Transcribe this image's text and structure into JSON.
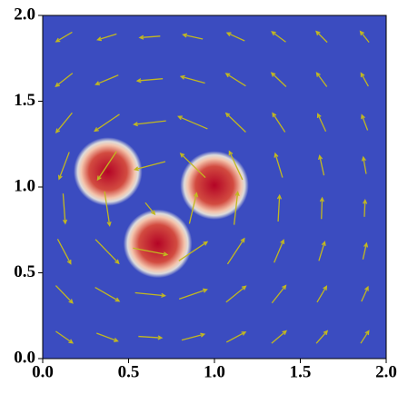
{
  "chart_data": {
    "type": "quiver",
    "xlim": [
      0,
      2
    ],
    "ylim": [
      0,
      2
    ],
    "xticks": [
      {
        "value": 0,
        "label": "0.0"
      },
      {
        "value": 0.5,
        "label": "0.5"
      },
      {
        "value": 1,
        "label": "1.0"
      },
      {
        "value": 1.5,
        "label": "1.5"
      },
      {
        "value": 2,
        "label": "2.0"
      }
    ],
    "yticks": [
      {
        "value": 0,
        "label": "0.0"
      },
      {
        "value": 0.5,
        "label": "0.5"
      },
      {
        "value": 1,
        "label": "1.0"
      },
      {
        "value": 1.5,
        "label": "1.5"
      },
      {
        "value": 2,
        "label": "2.0"
      }
    ],
    "background_color": "#3b4cc0",
    "blob_colors": [
      "#b40426",
      "#d24b40",
      "#f4c5ad",
      "#dddcdc",
      "#3b4cc0"
    ],
    "arrow_color": "#c2b820",
    "blobs": [
      {
        "x": 0.38,
        "y": 1.09,
        "r": 0.16
      },
      {
        "x": 0.67,
        "y": 0.67,
        "r": 0.16
      },
      {
        "x": 1.0,
        "y": 1.01,
        "r": 0.16
      }
    ],
    "quiver": {
      "x": [
        0.125,
        0.375,
        0.625,
        0.875,
        1.125,
        1.375,
        1.625,
        1.875
      ],
      "y": [
        0.125,
        0.375,
        0.625,
        0.875,
        1.125,
        1.375,
        1.625,
        1.875
      ],
      "u": [
        [
          0.23,
          0.29,
          0.32,
          0.31,
          0.26,
          0.2,
          0.15,
          0.11
        ],
        [
          0.23,
          0.33,
          0.41,
          0.38,
          0.27,
          0.19,
          0.13,
          0.09
        ],
        [
          0.18,
          0.32,
          0.47,
          0.39,
          0.23,
          0.13,
          0.08,
          0.05
        ],
        [
          0.03,
          0.07,
          0.13,
          0.1,
          0.05,
          0.02,
          0.01,
          0.01
        ],
        [
          -0.14,
          -0.26,
          -0.42,
          -0.34,
          -0.18,
          -0.1,
          -0.06,
          -0.04
        ],
        [
          -0.22,
          -0.34,
          -0.44,
          -0.4,
          -0.27,
          -0.17,
          -0.11,
          -0.08
        ],
        [
          -0.23,
          -0.31,
          -0.35,
          -0.33,
          -0.27,
          -0.2,
          -0.14,
          -0.1
        ],
        [
          -0.22,
          -0.26,
          -0.28,
          -0.27,
          -0.24,
          -0.19,
          -0.15,
          -0.12
        ]
      ],
      "v": [
        [
          -0.16,
          -0.11,
          -0.02,
          0.08,
          0.14,
          0.17,
          0.17,
          0.17
        ],
        [
          -0.24,
          -0.19,
          -0.04,
          0.13,
          0.22,
          0.24,
          0.22,
          0.2
        ],
        [
          -0.34,
          -0.33,
          -0.09,
          0.26,
          0.35,
          0.31,
          0.26,
          0.22
        ],
        [
          -0.41,
          -0.47,
          -0.16,
          0.42,
          0.45,
          0.36,
          0.29,
          0.23
        ],
        [
          -0.37,
          -0.39,
          -0.11,
          0.33,
          0.39,
          0.33,
          0.27,
          0.23
        ],
        [
          -0.27,
          -0.23,
          -0.05,
          0.17,
          0.26,
          0.26,
          0.24,
          0.21
        ],
        [
          -0.18,
          -0.13,
          -0.03,
          0.09,
          0.17,
          0.19,
          0.19,
          0.18
        ],
        [
          -0.13,
          -0.08,
          -0.02,
          0.06,
          0.11,
          0.14,
          0.15,
          0.15
        ]
      ]
    }
  }
}
